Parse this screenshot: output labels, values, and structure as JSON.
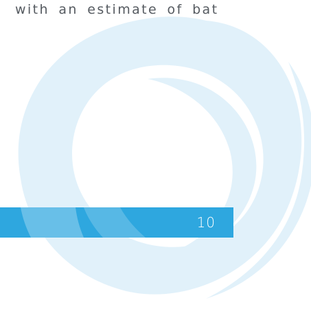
{
  "document": {
    "body_text": "with an estimate of bat",
    "page_number": "10"
  },
  "colors": {
    "accent": "#2ea7df",
    "watermark": "#e1f1fa",
    "text": "#555a60"
  }
}
